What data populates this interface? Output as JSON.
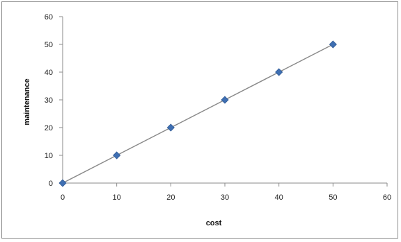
{
  "chart_data": {
    "type": "scatter",
    "title": "",
    "xlabel": "cost",
    "ylabel": "maintenance",
    "xlim": [
      0,
      60
    ],
    "ylim": [
      0,
      60
    ],
    "x_ticks": [
      0,
      10,
      20,
      30,
      40,
      50,
      60
    ],
    "y_ticks": [
      0,
      10,
      20,
      30,
      40,
      50,
      60
    ],
    "grid": false,
    "legend": "none",
    "series": [
      {
        "x": [
          0,
          10,
          20,
          30,
          40,
          50
        ],
        "y": [
          0,
          10,
          20,
          30,
          40,
          50
        ],
        "marker": "diamond",
        "marker_color": "#3f6fb2",
        "line": true,
        "line_color": "#8a8a8a"
      }
    ]
  }
}
